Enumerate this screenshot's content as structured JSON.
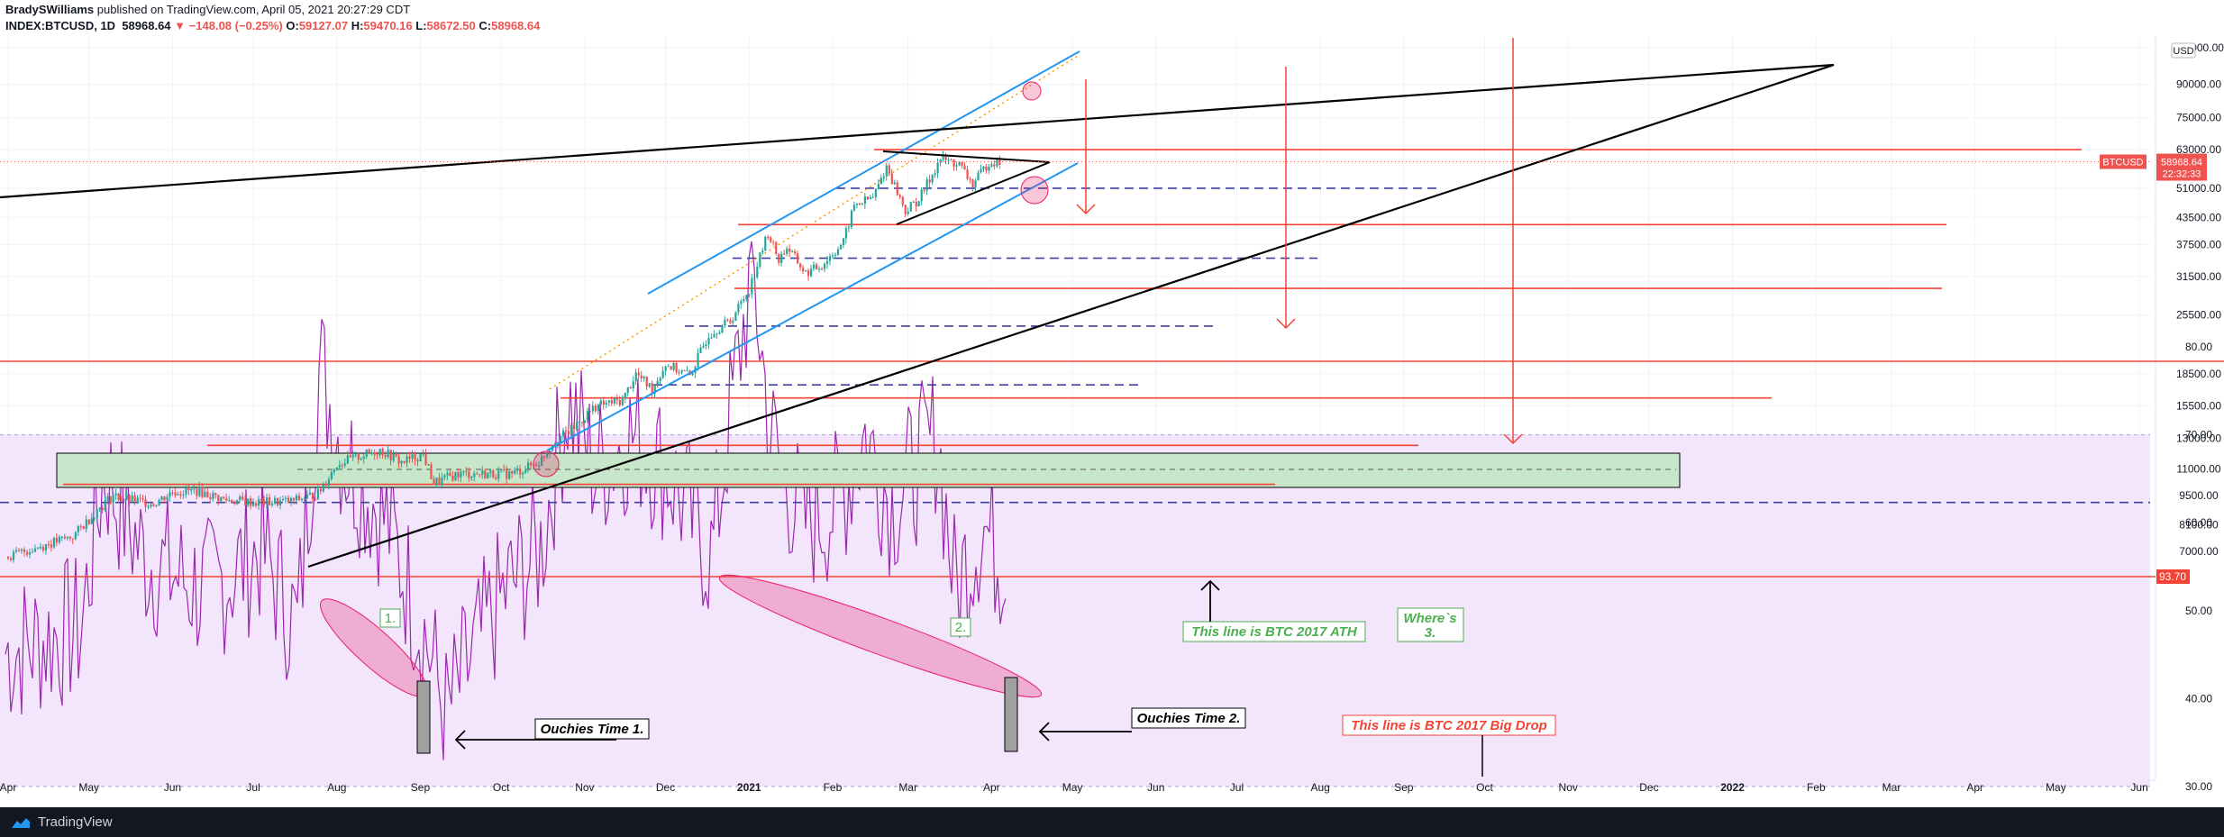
{
  "header": {
    "author": "BradySWilliams",
    "published": "published on TradingView.com, April 05, 2021 20:27:29 CDT",
    "symbol": "INDEX:BTCUSD, 1D",
    "last": "58968.64",
    "change_arrow": "▼",
    "change": "−148.08 (−0.25%)",
    "open_label": "O:",
    "open": "59127.07",
    "high_label": "H:",
    "high": "59470.16",
    "low_label": "L:",
    "low": "58672.50",
    "close_label": "C:",
    "close": "58968.64"
  },
  "colors": {
    "up": "#26a69a",
    "down": "#ef5350",
    "rsi": "#9c27b0",
    "rsi_band": "#f3e5fc",
    "trend_blue": "#2196f3",
    "level_red": "#f44336",
    "dash_navy": "#3f3fa0",
    "zone_green": "#c8e6c9",
    "black": "#000000"
  },
  "chart_data": [
    {
      "type": "candlestick",
      "symbol": "BTCUSD",
      "price_axis": {
        "scale": "log",
        "ticks": [
          "110000.00",
          "90000.00",
          "75000.00",
          "63000.00",
          "51000.00",
          "43500.00",
          "37500.00",
          "31500.00",
          "25500.00",
          "18500.00",
          "15500.00",
          "13000.00",
          "11000.00",
          "9500.00",
          "8100.00",
          "7000.00"
        ],
        "ylim": [
          6500,
          112000
        ],
        "currency": "USD",
        "last_label": "BTCUSD",
        "last_value": "58968.64",
        "countdown": "22:32:33"
      },
      "x_axis_ticks": [
        "Apr",
        "May",
        "Jun",
        "Jul",
        "Aug",
        "Sep",
        "Oct",
        "Nov",
        "Dec",
        "2021",
        "Feb",
        "Mar",
        "Apr",
        "May",
        "Jun",
        "Jul",
        "Aug",
        "Sep",
        "Oct",
        "Nov",
        "Dec",
        "2022",
        "Feb",
        "Mar",
        "Apr",
        "May",
        "Jun"
      ],
      "price_path": [
        [
          "2020-04-01",
          6800
        ],
        [
          "2020-04-10",
          7100
        ],
        [
          "2020-04-25",
          7600
        ],
        [
          "2020-05-05",
          8900
        ],
        [
          "2020-05-10",
          9500
        ],
        [
          "2020-05-15",
          9300
        ],
        [
          "2020-05-25",
          9100
        ],
        [
          "2020-06-01",
          9700
        ],
        [
          "2020-06-10",
          9750
        ],
        [
          "2020-06-20",
          9300
        ],
        [
          "2020-07-01",
          9150
        ],
        [
          "2020-07-15",
          9200
        ],
        [
          "2020-07-25",
          9600
        ],
        [
          "2020-08-01",
          11300
        ],
        [
          "2020-08-10",
          11800
        ],
        [
          "2020-08-17",
          12200
        ],
        [
          "2020-08-25",
          11400
        ],
        [
          "2020-09-02",
          11900
        ],
        [
          "2020-09-06",
          10200
        ],
        [
          "2020-09-15",
          10700
        ],
        [
          "2020-09-25",
          10700
        ],
        [
          "2020-10-05",
          10700
        ],
        [
          "2020-10-15",
          11400
        ],
        [
          "2020-10-21",
          12900
        ],
        [
          "2020-10-27",
          13600
        ],
        [
          "2020-11-05",
          15500
        ],
        [
          "2020-11-15",
          16000
        ],
        [
          "2020-11-20",
          18500
        ],
        [
          "2020-11-26",
          17000
        ],
        [
          "2020-12-01",
          19500
        ],
        [
          "2020-12-10",
          18300
        ],
        [
          "2020-12-17",
          23000
        ],
        [
          "2020-12-25",
          24700
        ],
        [
          "2021-01-01",
          29400
        ],
        [
          "2021-01-08",
          40000
        ],
        [
          "2021-01-12",
          34500
        ],
        [
          "2021-01-15",
          37000
        ],
        [
          "2021-01-22",
          32000
        ],
        [
          "2021-01-28",
          33500
        ],
        [
          "2021-02-05",
          38000
        ],
        [
          "2021-02-09",
          46500
        ],
        [
          "2021-02-16",
          48500
        ],
        [
          "2021-02-21",
          57500
        ],
        [
          "2021-02-28",
          45000
        ],
        [
          "2021-03-05",
          48000
        ],
        [
          "2021-03-13",
          60000
        ],
        [
          "2021-03-20",
          58000
        ],
        [
          "2021-03-25",
          52000
        ],
        [
          "2021-03-31",
          58900
        ],
        [
          "2021-04-05",
          58968.64
        ]
      ],
      "drawings": {
        "ascending_channel": "blue",
        "triangle": "black",
        "horizontal_levels": "red",
        "dashed_levels": "navy",
        "consolidation_zone": "green"
      }
    },
    {
      "type": "line",
      "indicator": "RSI",
      "ticks": [
        "80.00",
        "70.00",
        "60.00",
        "50.00",
        "40.00",
        "30.00"
      ],
      "ylim": [
        27,
        98
      ],
      "band": [
        30,
        70
      ],
      "marker_value": "93.70"
    }
  ],
  "annotations": {
    "label_1": "1.",
    "label_2": "2.",
    "ath": "This line is BTC 2017 ATH",
    "wheres3": [
      "Where`s",
      "3."
    ],
    "ouchies1": "Ouchies Time 1.",
    "ouchies2": "Ouchies Time 2.",
    "bigdrop": "This line is BTC 2017 Big Drop"
  },
  "footer": {
    "brand": "TradingView"
  }
}
